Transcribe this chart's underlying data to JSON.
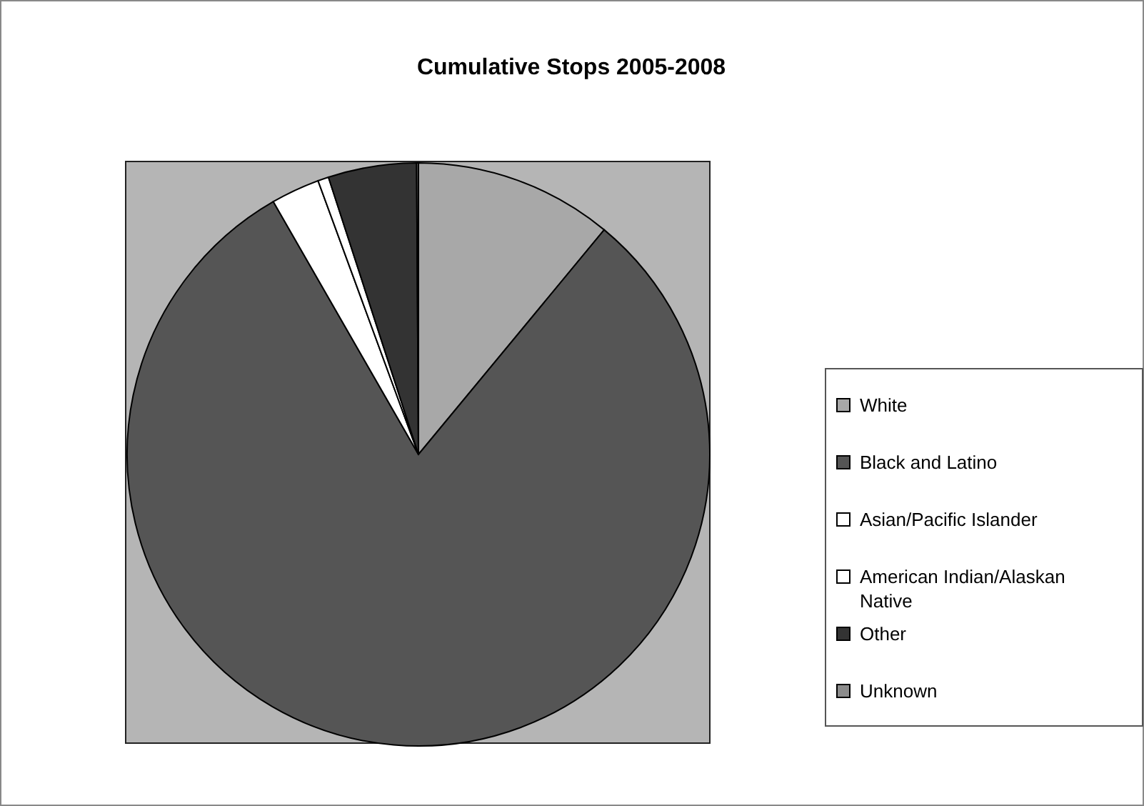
{
  "chart_data": {
    "type": "pie",
    "title": "Cumulative Stops 2005-2008",
    "categories": [
      "White",
      "Black and Latino",
      "Asian/Pacific Islander",
      "American Indian/Alaskan Native",
      "Other",
      "Unknown"
    ],
    "values": [
      11.0,
      80.7,
      2.7,
      0.6,
      4.9,
      0.1
    ],
    "colors": [
      "#a8a8a8",
      "#555555",
      "#ffffff",
      "#ffffff",
      "#333333",
      "#8c8c8c"
    ],
    "legend": "right"
  }
}
